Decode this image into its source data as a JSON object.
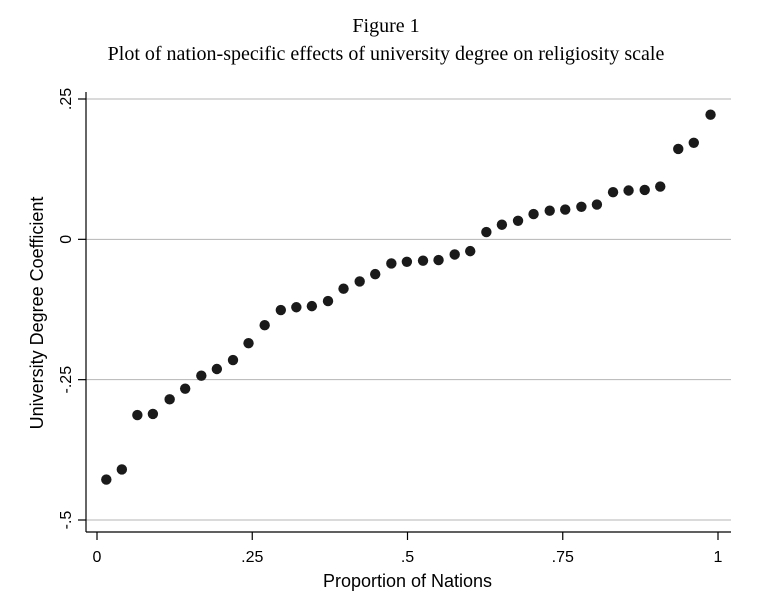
{
  "chart_data": {
    "type": "scatter",
    "title": "Figure 1",
    "subtitle": "Plot of nation-specific effects of university degree on religiosity scale",
    "xlabel": "Proportion of Nations",
    "ylabel": "University Degree Coefficient",
    "xlim": [
      0,
      1
    ],
    "ylim": [
      -0.5,
      0.25
    ],
    "x_ticks": [
      {
        "value": 0,
        "label": "0"
      },
      {
        "value": 0.25,
        "label": ".25"
      },
      {
        "value": 0.5,
        "label": ".5"
      },
      {
        "value": 0.75,
        "label": ".75"
      },
      {
        "value": 1,
        "label": "1"
      }
    ],
    "y_ticks": [
      {
        "value": -0.5,
        "label": "-.5"
      },
      {
        "value": -0.25,
        "label": "-.25"
      },
      {
        "value": 0,
        "label": "0"
      },
      {
        "value": 0.25,
        "label": ".25"
      }
    ],
    "grid": "horizontal",
    "marker_color": "#1a1a1a",
    "points": [
      {
        "x": 0.015,
        "y": -0.428
      },
      {
        "x": 0.04,
        "y": -0.41
      },
      {
        "x": 0.065,
        "y": -0.313
      },
      {
        "x": 0.09,
        "y": -0.311
      },
      {
        "x": 0.117,
        "y": -0.285
      },
      {
        "x": 0.142,
        "y": -0.266
      },
      {
        "x": 0.168,
        "y": -0.243
      },
      {
        "x": 0.193,
        "y": -0.231
      },
      {
        "x": 0.219,
        "y": -0.215
      },
      {
        "x": 0.244,
        "y": -0.185
      },
      {
        "x": 0.27,
        "y": -0.153
      },
      {
        "x": 0.296,
        "y": -0.126
      },
      {
        "x": 0.321,
        "y": -0.121
      },
      {
        "x": 0.346,
        "y": -0.119
      },
      {
        "x": 0.372,
        "y": -0.11
      },
      {
        "x": 0.397,
        "y": -0.088
      },
      {
        "x": 0.423,
        "y": -0.075
      },
      {
        "x": 0.448,
        "y": -0.062
      },
      {
        "x": 0.474,
        "y": -0.043
      },
      {
        "x": 0.499,
        "y": -0.04
      },
      {
        "x": 0.525,
        "y": -0.038
      },
      {
        "x": 0.55,
        "y": -0.037
      },
      {
        "x": 0.576,
        "y": -0.027
      },
      {
        "x": 0.601,
        "y": -0.021
      },
      {
        "x": 0.627,
        "y": 0.013
      },
      {
        "x": 0.652,
        "y": 0.026
      },
      {
        "x": 0.678,
        "y": 0.033
      },
      {
        "x": 0.703,
        "y": 0.045
      },
      {
        "x": 0.729,
        "y": 0.051
      },
      {
        "x": 0.754,
        "y": 0.053
      },
      {
        "x": 0.78,
        "y": 0.058
      },
      {
        "x": 0.805,
        "y": 0.062
      },
      {
        "x": 0.831,
        "y": 0.084
      },
      {
        "x": 0.856,
        "y": 0.087
      },
      {
        "x": 0.882,
        "y": 0.088
      },
      {
        "x": 0.907,
        "y": 0.094
      },
      {
        "x": 0.936,
        "y": 0.161
      },
      {
        "x": 0.961,
        "y": 0.172
      },
      {
        "x": 0.988,
        "y": 0.222
      }
    ]
  }
}
